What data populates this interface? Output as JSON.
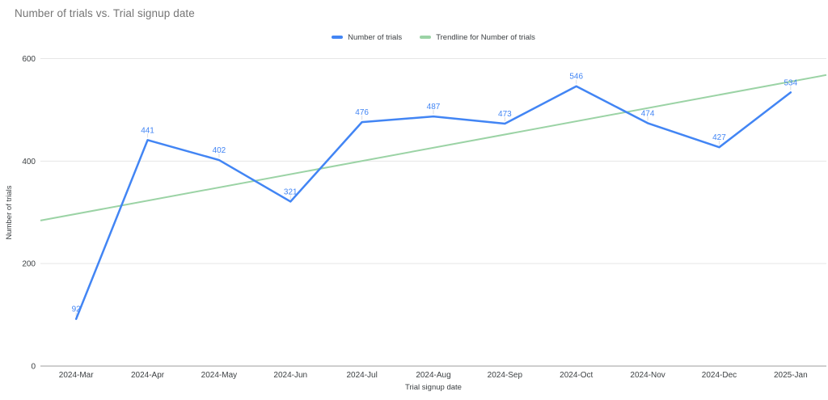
{
  "chart_data": {
    "type": "line",
    "title": "Number of trials vs. Trial signup date",
    "xlabel": "Trial signup date",
    "ylabel": "Number of trials",
    "categories": [
      "2024-Mar",
      "2024-Apr",
      "2024-May",
      "2024-Jun",
      "2024-Jul",
      "2024-Aug",
      "2024-Sep",
      "2024-Oct",
      "2024-Nov",
      "2024-Dec",
      "2025-Jan"
    ],
    "series": [
      {
        "name": "Number of trials",
        "color": "#4285f4",
        "values": [
          92,
          441,
          402,
          321,
          476,
          487,
          473,
          546,
          474,
          427,
          534
        ],
        "point_labels_shown": true
      },
      {
        "name": "Trendline for Number of trials",
        "color": "#9bd3a5",
        "role": "trendline",
        "edge_values": [
          284,
          568
        ]
      }
    ],
    "ylim": [
      0,
      600
    ],
    "yticks": [
      0,
      200,
      400,
      600
    ],
    "grid": true,
    "legend_position": "top",
    "title_color": "#757575",
    "grid_color": "#e6e6e6",
    "axis_line_color": "#9e9e9e",
    "tick_label_color": "#3c4043",
    "label_leader_color": "#dadce0",
    "background_color": "#ffffff"
  }
}
